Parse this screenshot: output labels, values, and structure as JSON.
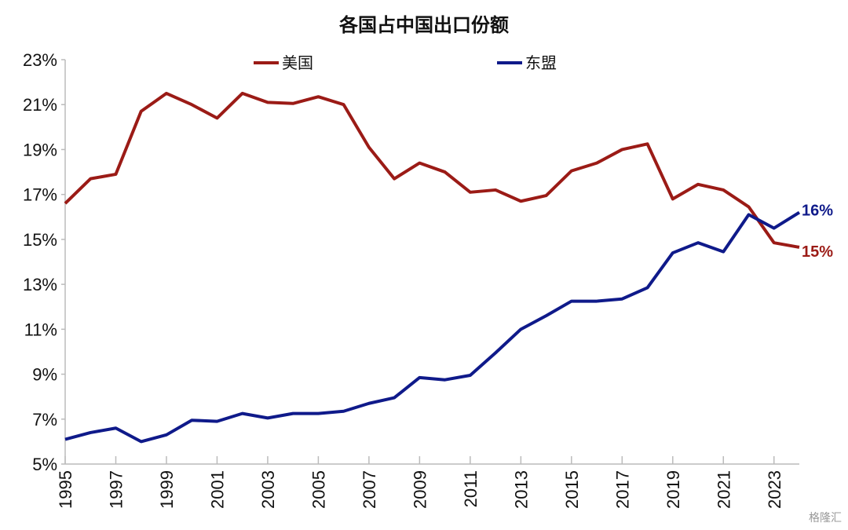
{
  "chart_data": {
    "type": "line",
    "title": "各国占中国出口份额",
    "x": [
      1995,
      1996,
      1997,
      1998,
      1999,
      2000,
      2001,
      2002,
      2003,
      2004,
      2005,
      2006,
      2007,
      2008,
      2009,
      2010,
      2011,
      2012,
      2013,
      2014,
      2015,
      2016,
      2017,
      2018,
      2019,
      2020,
      2021,
      2022,
      2023,
      2024
    ],
    "x_tick_labels": [
      "1995",
      "1997",
      "1999",
      "2001",
      "2003",
      "2005",
      "2007",
      "2009",
      "2011",
      "2013",
      "2015",
      "2017",
      "2019",
      "2021",
      "2023"
    ],
    "y_tick_labels": [
      "5%",
      "7%",
      "9%",
      "11%",
      "13%",
      "15%",
      "17%",
      "19%",
      "21%",
      "23%"
    ],
    "ylim": [
      5,
      23
    ],
    "xlabel": "",
    "ylabel": "",
    "grid": false,
    "legend_placement": "top",
    "series": [
      {
        "name": "美国",
        "color": "#9B1B16",
        "end_label": "15%",
        "values": [
          16.6,
          17.7,
          17.9,
          20.7,
          21.5,
          21.0,
          20.4,
          21.5,
          21.1,
          21.05,
          21.35,
          21.0,
          19.1,
          17.7,
          18.4,
          18.0,
          17.1,
          17.2,
          16.7,
          16.95,
          18.05,
          18.4,
          19.0,
          19.25,
          16.8,
          17.45,
          17.2,
          16.45,
          14.85,
          14.65
        ]
      },
      {
        "name": "东盟",
        "color": "#0F1A8A",
        "end_label": "16%",
        "values": [
          6.1,
          6.4,
          6.6,
          6.0,
          6.3,
          6.95,
          6.9,
          7.25,
          7.05,
          7.25,
          7.25,
          7.35,
          7.7,
          7.95,
          8.85,
          8.75,
          8.95,
          9.95,
          11.0,
          11.6,
          12.25,
          12.25,
          12.35,
          12.85,
          14.4,
          14.85,
          14.45,
          16.1,
          15.5,
          16.2
        ]
      }
    ]
  },
  "watermark": "格隆汇"
}
